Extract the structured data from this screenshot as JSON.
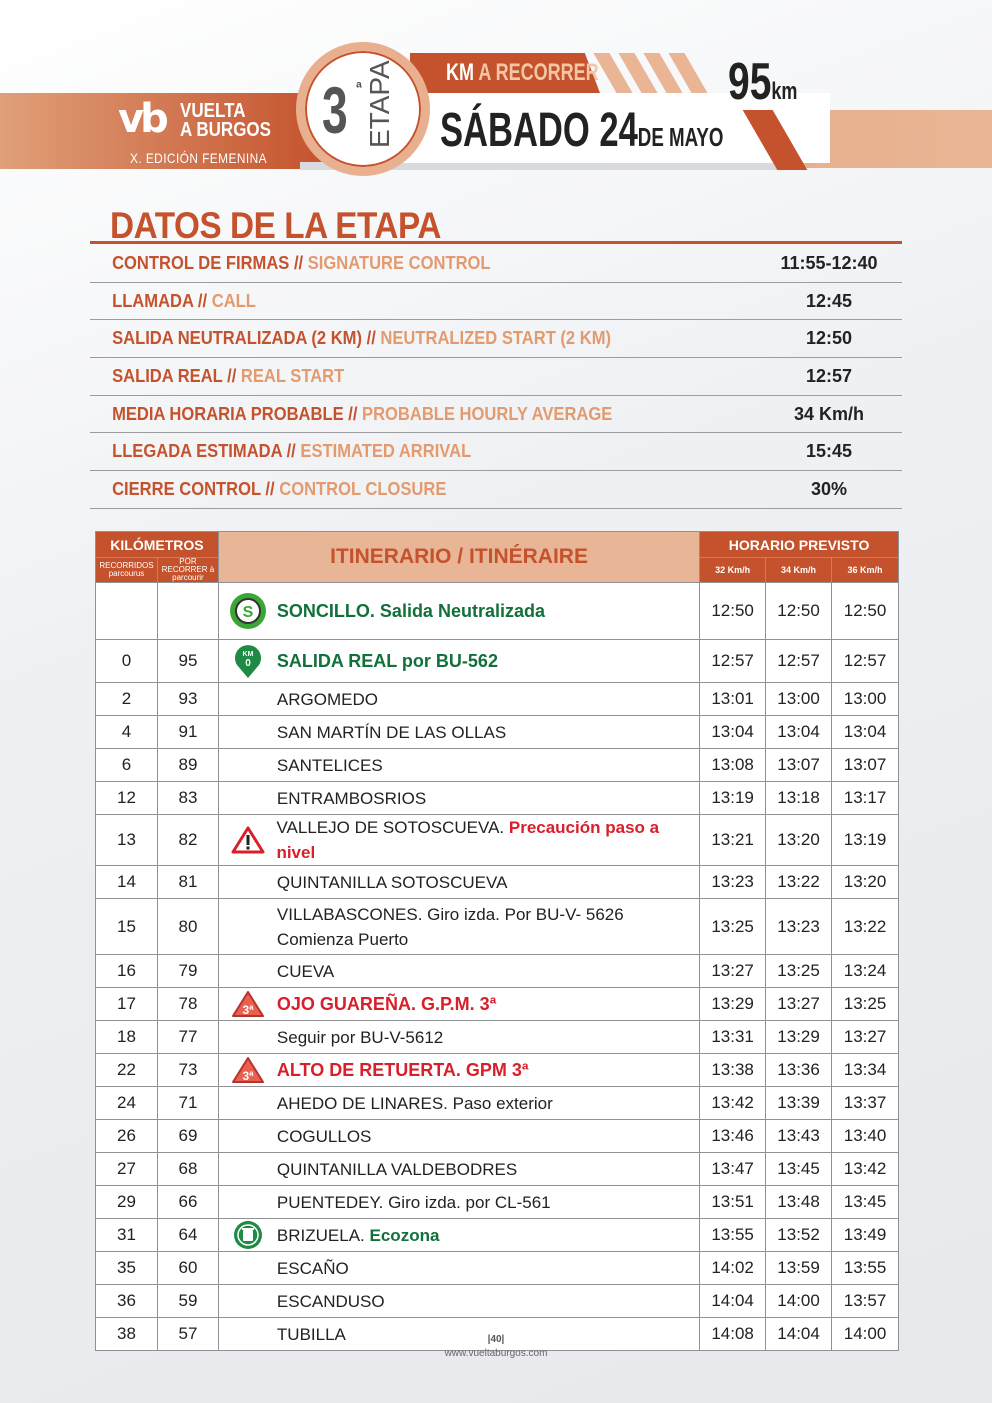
{
  "header": {
    "logo_vb": "vb",
    "logo_line1": "VUELTA",
    "logo_line2": "A BURGOS",
    "edition": "X. EDICIÓN FEMENINA",
    "stage_number": "3",
    "stage_sup": "ª",
    "stage_word": "ETAPA",
    "km_label_a": "KM",
    "km_label_b": " A RECORRER",
    "date_main": "SÁBADO 24",
    "date_small": "DE MAYO",
    "distance": "95",
    "distance_unit": "km",
    "colors": {
      "brand": "#c4522c",
      "light": "#e8b596"
    }
  },
  "datos": {
    "title": "DATOS DE LA ETAPA",
    "rows": [
      {
        "es": "CONTROL DE FIRMAS",
        "en": "SIGNATURE CONTROL",
        "value": "11:55-12:40"
      },
      {
        "es": "LLAMADA",
        "en": "CALL",
        "value": "12:45"
      },
      {
        "es": "SALIDA NEUTRALIZADA (2 KM)",
        "en": "NEUTRALIZED START (2 KM)",
        "value": "12:50"
      },
      {
        "es": "SALIDA REAL",
        "en": "REAL START",
        "value": "12:57"
      },
      {
        "es": "MEDIA HORARIA PROBABLE",
        "en": "PROBABLE HOURLY AVERAGE",
        "value": "34 Km/h"
      },
      {
        "es": "LLEGADA ESTIMADA",
        "en": "ESTIMATED ARRIVAL",
        "value": "15:45"
      },
      {
        "es": "CIERRE CONTROL",
        "en": "CONTROL CLOSURE",
        "value": "30%"
      }
    ],
    "separator": " // "
  },
  "itinerary": {
    "headers": {
      "km": "KILÓMETROS",
      "done": "RECORRIDOS parcourus",
      "remaining": "POR RECORRER à parcourir",
      "route": "ITINERARIO / ITINÉRAIRE",
      "schedule": "HORARIO PREVISTO",
      "speeds": [
        "32 Km/h",
        "34 Km/h",
        "36 Km/h"
      ]
    },
    "rows": [
      {
        "km": "",
        "rem": "",
        "icon": "start-s-icon",
        "text": "SONCILLO. Salida Neutralizada",
        "style": "green",
        "times": [
          "12:50",
          "12:50",
          "12:50"
        ]
      },
      {
        "km": "0",
        "rem": "95",
        "icon": "km0-pin-icon",
        "text": "SALIDA REAL por BU-562",
        "style": "green",
        "times": [
          "12:57",
          "12:57",
          "12:57"
        ]
      },
      {
        "km": "2",
        "rem": "93",
        "text": "ARGOMEDO",
        "times": [
          "13:01",
          "13:00",
          "13:00"
        ]
      },
      {
        "km": "4",
        "rem": "91",
        "text": "SAN MARTÍN DE LAS OLLAS",
        "times": [
          "13:04",
          "13:04",
          "13:04"
        ]
      },
      {
        "km": "6",
        "rem": "89",
        "text": "SANTELICES",
        "times": [
          "13:08",
          "13:07",
          "13:07"
        ]
      },
      {
        "km": "12",
        "rem": "83",
        "text": "ENTRAMBOSRIOS",
        "times": [
          "13:19",
          "13:18",
          "13:17"
        ]
      },
      {
        "km": "13",
        "rem": "82",
        "icon": "warning-icon",
        "text": "VALLEJO DE SOTOSCUEVA. ",
        "note": "Precaución paso a nivel",
        "note_style": "hl-red",
        "times": [
          "13:21",
          "13:20",
          "13:19"
        ]
      },
      {
        "km": "14",
        "rem": "81",
        "text": "QUINTANILLA SOTOSCUEVA",
        "times": [
          "13:23",
          "13:22",
          "13:20"
        ]
      },
      {
        "km": "15",
        "rem": "80",
        "text": "VILLABASCONES. Giro izda. Por BU-V- 5626",
        "text2": "Comienza Puerto",
        "times": [
          "13:25",
          "13:23",
          "13:22"
        ]
      },
      {
        "km": "16",
        "rem": "79",
        "text": "CUEVA",
        "times": [
          "13:27",
          "13:25",
          "13:24"
        ]
      },
      {
        "km": "17",
        "rem": "78",
        "icon": "mountain-3rd-cat-icon",
        "text": "OJO GUAREÑA. G.P.M. 3ª",
        "style": "red",
        "times": [
          "13:29",
          "13:27",
          "13:25"
        ]
      },
      {
        "km": "18",
        "rem": "77",
        "text": "Seguir por BU-V-5612",
        "times": [
          "13:31",
          "13:29",
          "13:27"
        ]
      },
      {
        "km": "22",
        "rem": "73",
        "icon": "mountain-3rd-cat-icon",
        "text": "ALTO DE RETUERTA. GPM 3ª",
        "style": "red",
        "times": [
          "13:38",
          "13:36",
          "13:34"
        ]
      },
      {
        "km": "24",
        "rem": "71",
        "text": "AHEDO DE LINARES. Paso exterior",
        "times": [
          "13:42",
          "13:39",
          "13:37"
        ]
      },
      {
        "km": "26",
        "rem": "69",
        "text": "COGULLOS",
        "times": [
          "13:46",
          "13:43",
          "13:40"
        ]
      },
      {
        "km": "27",
        "rem": "68",
        "text": "QUINTANILLA VALDEBODRES",
        "times": [
          "13:47",
          "13:45",
          "13:42"
        ]
      },
      {
        "km": "29",
        "rem": "66",
        "text": "PUENTEDEY. Giro izda. por CL-561",
        "times": [
          "13:51",
          "13:48",
          "13:45"
        ]
      },
      {
        "km": "31",
        "rem": "64",
        "icon": "ecozone-bin-icon",
        "text": "BRIZUELA. ",
        "note": "Ecozona",
        "note_style": "hl-green",
        "times": [
          "13:55",
          "13:52",
          "13:49"
        ]
      },
      {
        "km": "35",
        "rem": "60",
        "text": "ESCAÑO",
        "times": [
          "14:02",
          "13:59",
          "13:55"
        ]
      },
      {
        "km": "36",
        "rem": "59",
        "text": "ESCANDUSO",
        "times": [
          "14:04",
          "14:00",
          "13:57"
        ]
      },
      {
        "km": "38",
        "rem": "57",
        "text": "TUBILLA",
        "times": [
          "14:08",
          "14:04",
          "14:00"
        ]
      }
    ]
  },
  "footer": {
    "page": "|40|",
    "url": "www.vueltaburgos.com"
  }
}
